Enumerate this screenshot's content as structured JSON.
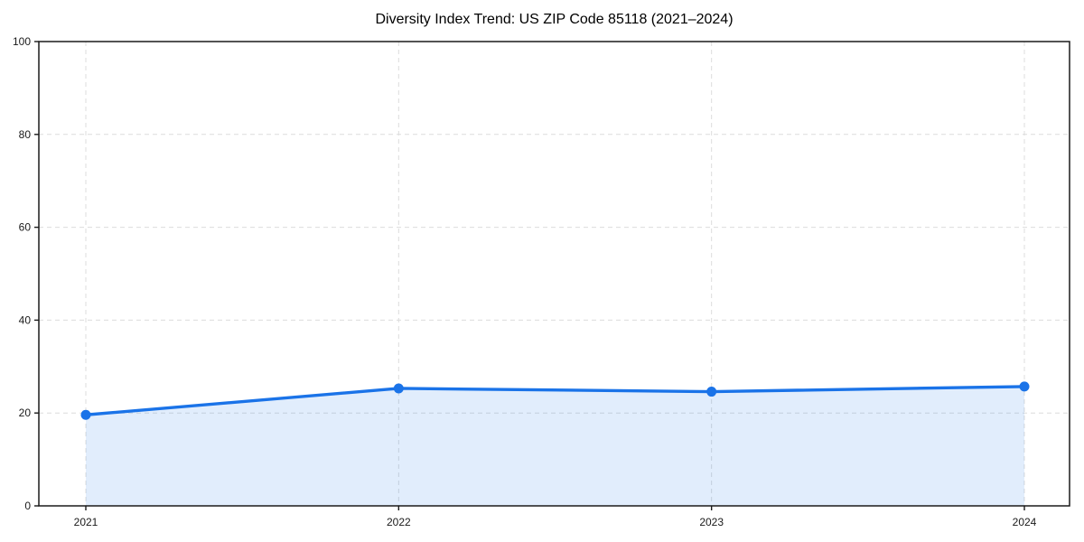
{
  "page": {
    "background": "#ffffff"
  },
  "chart_data": {
    "type": "area",
    "title": "Diversity Index Trend: US ZIP Code 85118 (2021–2024)",
    "x": [
      "2021",
      "2022",
      "2023",
      "2024"
    ],
    "series": [
      {
        "name": "Diversity Index",
        "values": [
          19.6,
          25.3,
          24.6,
          25.7
        ]
      }
    ],
    "xlabel": "",
    "ylabel": "",
    "ylim": [
      0,
      100
    ],
    "yticks": [
      0,
      20,
      40,
      60,
      80,
      100
    ],
    "grid": "dashed-both-axes",
    "legend": "none",
    "marker": "circle",
    "colors": {
      "line": "#1a73e8",
      "fill": "#1a73e8",
      "fill_opacity": 0.13,
      "grid": "#dcdcdc",
      "axis": "#1a1a1a",
      "tick_text": "#1a1a1a",
      "background": "#ffffff"
    }
  }
}
